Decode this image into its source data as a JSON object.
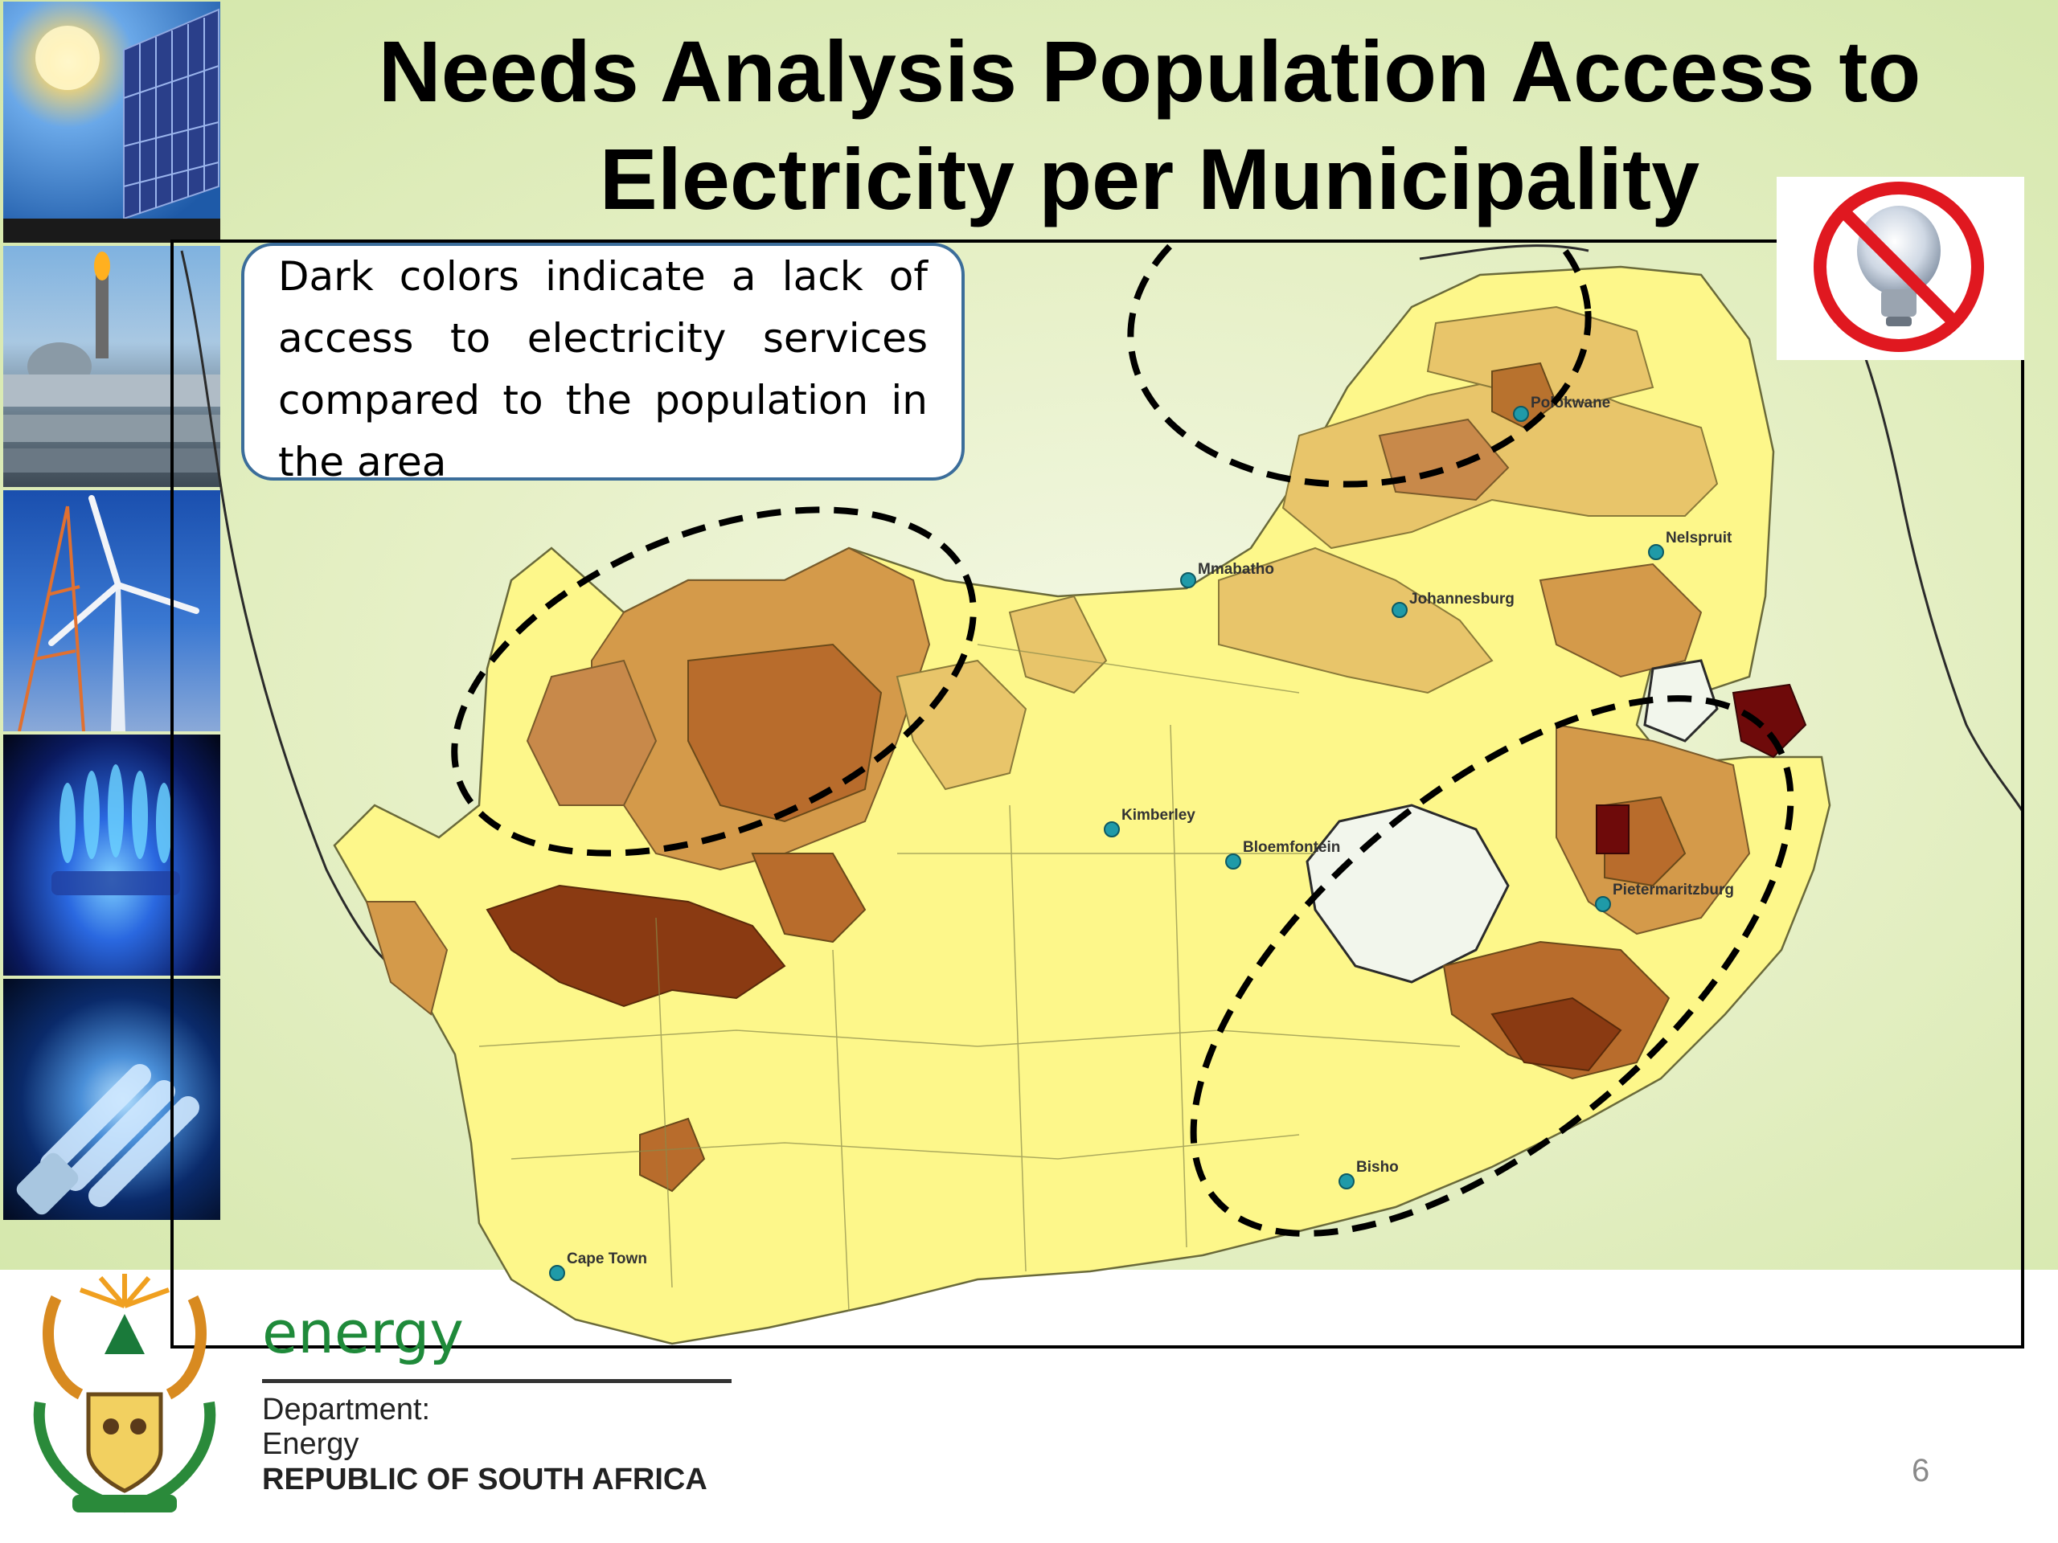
{
  "slide": {
    "title": "Needs Analysis Population Access to Electricity per Municipality",
    "page_number": "6"
  },
  "callout": {
    "text": "Dark colors indicate a lack of access to electricity services compared to the population in the area"
  },
  "map": {
    "subject": "South Africa municipalities",
    "cities": [
      {
        "name": "Polokwane"
      },
      {
        "name": "Nelspruit"
      },
      {
        "name": "Mmabatho"
      },
      {
        "name": "Johannesburg"
      },
      {
        "name": "Kimberley"
      },
      {
        "name": "Bloemfontein"
      },
      {
        "name": "Pietermaritzburg"
      },
      {
        "name": "Bisho"
      },
      {
        "name": "Cape Town"
      }
    ],
    "colors": {
      "high_access": "#fdf78a",
      "medium_high": "#e8c56a",
      "medium": "#d49a4a",
      "low": "#b86c2c",
      "very_low": "#8a3a12",
      "lowest": "#6e0a0a",
      "city_marker": "#1f9aa8",
      "ocean_land": "#c8e0a0"
    },
    "highlight_regions": [
      "north-west-cape-ellipse",
      "limpopo-ellipse",
      "eastern-cape-kzn-ellipse"
    ]
  },
  "icons": {
    "no_electricity": "no-lightbulb-icon",
    "department_logo": "coat-of-arms-icon"
  },
  "footer": {
    "brand": "energy",
    "dept_line1": "Department:",
    "dept_line2": "Energy",
    "dept_line3": "REPUBLIC OF SOUTH AFRICA"
  }
}
